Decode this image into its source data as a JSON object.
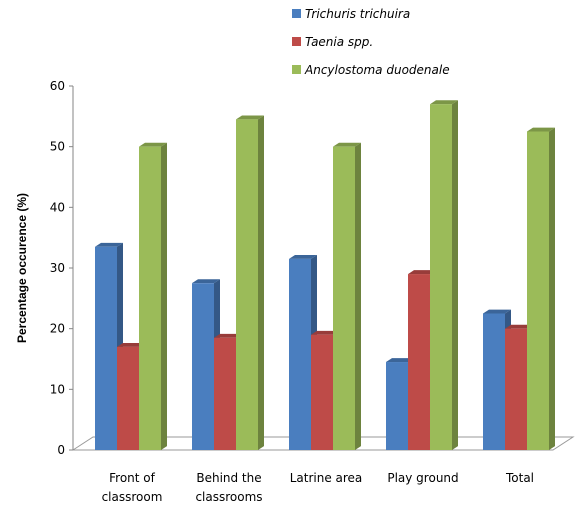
{
  "chart_data": {
    "type": "bar",
    "style": "3d-clustered-column",
    "title": "",
    "xlabel": "",
    "ylabel": "Percentage occurence (%)",
    "ylim": [
      0,
      60
    ],
    "yticks": [
      0,
      10,
      20,
      30,
      40,
      50,
      60
    ],
    "grid": false,
    "legend_position": "top",
    "categories": [
      [
        "Front of",
        "classroom"
      ],
      [
        "Behind the",
        "classrooms"
      ],
      [
        "Latrine area"
      ],
      [
        "Play ground"
      ],
      [
        "Total"
      ]
    ],
    "series": [
      {
        "name": "Trichuris trichuira",
        "color": "#4a7ebf",
        "values": [
          33.5,
          27.5,
          31.5,
          14.5,
          22.5
        ]
      },
      {
        "name": "Taenia spp.",
        "color": "#be4b48",
        "values": [
          17,
          18.5,
          19,
          29,
          20
        ]
      },
      {
        "name": "Ancylostoma duodenale",
        "color": "#9bbb59",
        "values": [
          50,
          54.5,
          50,
          57,
          52.5
        ]
      }
    ]
  }
}
